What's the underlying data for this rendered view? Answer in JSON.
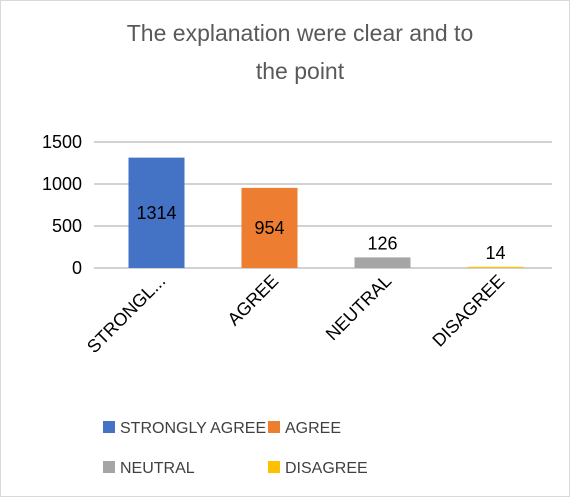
{
  "chart_data": {
    "type": "bar",
    "title": "The explanation were clear and to the point",
    "categories": [
      "STRONGL...",
      "AGREE",
      "NEUTRAL",
      "DISAGREE"
    ],
    "values": [
      1314,
      954,
      126,
      14
    ],
    "colors": [
      "#4472c4",
      "#ed7d31",
      "#a5a5a5",
      "#ffc000"
    ],
    "legend": [
      "STRONGLY AGREE",
      "AGREE",
      "NEUTRAL",
      "DISAGREE"
    ],
    "ylim": [
      0,
      1500
    ],
    "yticks": [
      0,
      500,
      1000,
      1500
    ],
    "grid": true
  }
}
